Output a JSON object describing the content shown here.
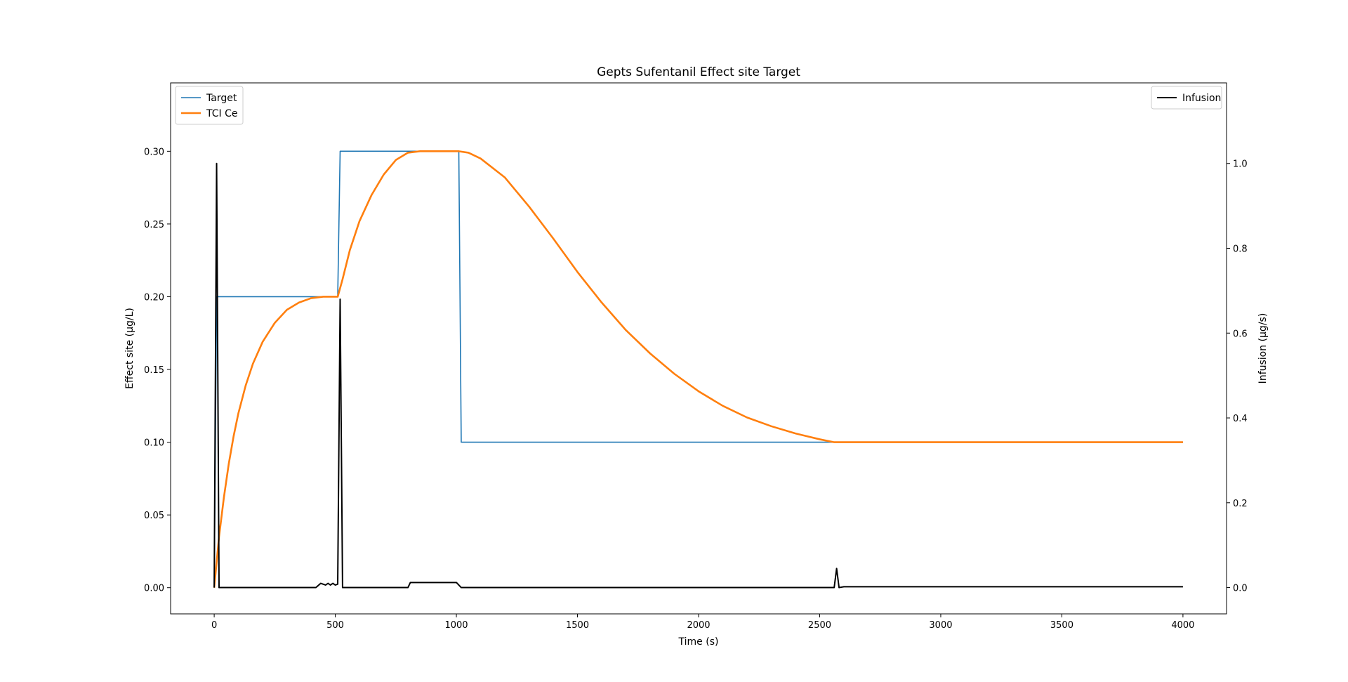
{
  "chart_data": {
    "type": "line",
    "title": "Gepts Sufentanil Effect site Target",
    "xlabel": "Time (s)",
    "ylabel_left": "Effect site (µg/L)",
    "ylabel_right": "Infusion (µg/s)",
    "xlim": [
      -180,
      4180
    ],
    "ylim_left": [
      -0.018,
      0.347
    ],
    "ylim_right": [
      -0.062,
      1.19
    ],
    "x_ticks": [
      0,
      500,
      1000,
      1500,
      2000,
      2500,
      3000,
      3500,
      4000
    ],
    "y_left_ticks": [
      0.0,
      0.05,
      0.1,
      0.15,
      0.2,
      0.25,
      0.3
    ],
    "y_left_tick_labels": [
      "0.00",
      "0.05",
      "0.10",
      "0.15",
      "0.20",
      "0.25",
      "0.30"
    ],
    "y_right_ticks": [
      0.0,
      0.2,
      0.4,
      0.6,
      0.8,
      1.0
    ],
    "y_right_tick_labels": [
      "0.0",
      "0.2",
      "0.4",
      "0.6",
      "0.8",
      "1.0"
    ],
    "grid": false,
    "legend_left_placement": "upper-left",
    "legend_right_placement": "upper-right",
    "series": [
      {
        "name": "Target",
        "axis": "left",
        "color": "#1f77b4",
        "points": [
          [
            0,
            0.0
          ],
          [
            10,
            0.2
          ],
          [
            510,
            0.2
          ],
          [
            520,
            0.3
          ],
          [
            1010,
            0.3
          ],
          [
            1020,
            0.1
          ],
          [
            4000,
            0.1
          ]
        ]
      },
      {
        "name": "TCI Ce",
        "axis": "left",
        "color": "#ff7f0e",
        "points": [
          [
            0,
            0.0
          ],
          [
            20,
            0.035
          ],
          [
            40,
            0.062
          ],
          [
            60,
            0.085
          ],
          [
            80,
            0.104
          ],
          [
            100,
            0.12
          ],
          [
            130,
            0.139
          ],
          [
            160,
            0.154
          ],
          [
            200,
            0.169
          ],
          [
            250,
            0.182
          ],
          [
            300,
            0.191
          ],
          [
            350,
            0.196
          ],
          [
            400,
            0.199
          ],
          [
            450,
            0.2
          ],
          [
            510,
            0.2
          ],
          [
            530,
            0.212
          ],
          [
            560,
            0.232
          ],
          [
            600,
            0.252
          ],
          [
            650,
            0.27
          ],
          [
            700,
            0.284
          ],
          [
            750,
            0.294
          ],
          [
            800,
            0.299
          ],
          [
            850,
            0.3
          ],
          [
            1010,
            0.3
          ],
          [
            1050,
            0.299
          ],
          [
            1100,
            0.295
          ],
          [
            1200,
            0.282
          ],
          [
            1300,
            0.262
          ],
          [
            1400,
            0.24
          ],
          [
            1500,
            0.217
          ],
          [
            1600,
            0.196
          ],
          [
            1700,
            0.177
          ],
          [
            1800,
            0.161
          ],
          [
            1900,
            0.147
          ],
          [
            2000,
            0.135
          ],
          [
            2100,
            0.125
          ],
          [
            2200,
            0.117
          ],
          [
            2300,
            0.111
          ],
          [
            2400,
            0.106
          ],
          [
            2500,
            0.102
          ],
          [
            2560,
            0.1
          ],
          [
            4000,
            0.1
          ]
        ]
      },
      {
        "name": "Infusion",
        "axis": "right",
        "color": "#000000",
        "points": [
          [
            0,
            0.0
          ],
          [
            10,
            1.0
          ],
          [
            20,
            0.0
          ],
          [
            420,
            0.0
          ],
          [
            440,
            0.01
          ],
          [
            460,
            0.006
          ],
          [
            470,
            0.01
          ],
          [
            480,
            0.006
          ],
          [
            490,
            0.01
          ],
          [
            500,
            0.006
          ],
          [
            510,
            0.008
          ],
          [
            520,
            0.68
          ],
          [
            530,
            0.0
          ],
          [
            800,
            0.0
          ],
          [
            810,
            0.012
          ],
          [
            1000,
            0.012
          ],
          [
            1020,
            0.0
          ],
          [
            2560,
            0.0
          ],
          [
            2570,
            0.045
          ],
          [
            2580,
            0.0
          ],
          [
            2600,
            0.002
          ],
          [
            4000,
            0.002
          ]
        ]
      }
    ]
  }
}
